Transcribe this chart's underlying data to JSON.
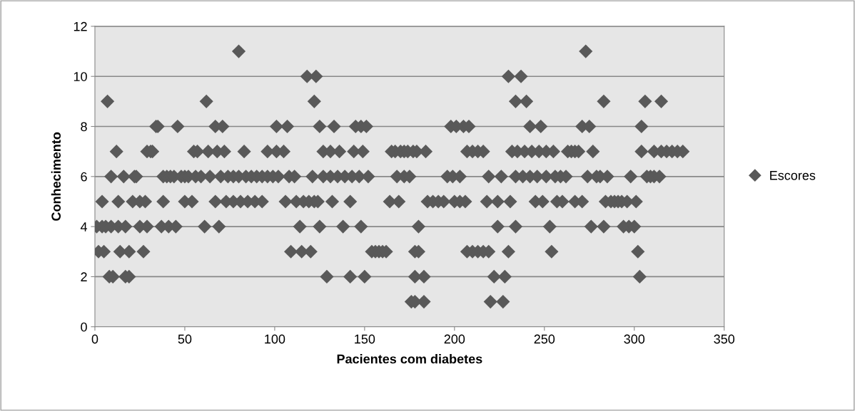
{
  "chart_data": {
    "type": "scatter",
    "xlabel": "Pacientes com diabetes",
    "ylabel": "Conhecimento",
    "xlim": [
      0,
      350
    ],
    "xticks": [
      0,
      50,
      100,
      150,
      200,
      250,
      300,
      350
    ],
    "ylim": [
      0,
      12
    ],
    "yticks": [
      0,
      2,
      4,
      6,
      8,
      10,
      12
    ],
    "grid": "y",
    "legend": "right",
    "marker": "diamond",
    "series": [
      {
        "name": "Escores",
        "color": "#595959",
        "x": [
          1,
          2,
          4,
          4,
          5,
          6,
          7,
          8,
          9,
          9,
          10,
          12,
          13,
          13,
          14,
          16,
          17,
          17,
          19,
          19,
          21,
          22,
          23,
          25,
          25,
          27,
          28,
          29,
          29,
          31,
          32,
          34,
          35,
          37,
          38,
          38,
          40,
          41,
          42,
          44,
          45,
          46,
          48,
          50,
          50,
          52,
          54,
          55,
          56,
          57,
          59,
          61,
          62,
          63,
          64,
          67,
          67,
          68,
          69,
          70,
          71,
          72,
          73,
          74,
          77,
          77,
          80,
          80,
          81,
          83,
          84,
          85,
          87,
          89,
          90,
          93,
          93,
          96,
          96,
          99,
          101,
          101,
          102,
          105,
          106,
          107,
          108,
          109,
          111,
          112,
          114,
          115,
          116,
          118,
          119,
          120,
          121,
          122,
          122,
          123,
          124,
          125,
          125,
          127,
          127,
          129,
          131,
          131,
          132,
          133,
          135,
          136,
          138,
          139,
          142,
          142,
          143,
          144,
          145,
          147,
          148,
          148,
          149,
          150,
          151,
          152,
          154,
          156,
          158,
          160,
          162,
          164,
          165,
          167,
          168,
          169,
          170,
          172,
          172,
          174,
          175,
          176,
          177,
          178,
          178,
          178,
          179,
          180,
          180,
          183,
          183,
          184,
          185,
          188,
          191,
          194,
          196,
          198,
          199,
          200,
          201,
          203,
          203,
          205,
          206,
          207,
          207,
          208,
          210,
          210,
          213,
          213,
          216,
          216,
          218,
          219,
          219,
          220,
          222,
          224,
          224,
          226,
          227,
          228,
          230,
          230,
          231,
          232,
          234,
          234,
          234,
          235,
          237,
          238,
          239,
          240,
          242,
          242,
          243,
          245,
          246,
          247,
          248,
          249,
          251,
          251,
          253,
          254,
          255,
          256,
          257,
          259,
          260,
          262,
          263,
          265,
          267,
          267,
          269,
          271,
          271,
          273,
          274,
          275,
          276,
          277,
          279,
          281,
          283,
          283,
          284,
          285,
          287,
          289,
          291,
          293,
          294,
          296,
          297,
          298,
          300,
          301,
          302,
          303,
          304,
          304,
          306,
          307,
          309,
          311,
          311,
          314,
          315,
          315,
          318,
          321,
          324,
          327
        ],
        "values": [
          4,
          3,
          5,
          4,
          3,
          4,
          9,
          2,
          4,
          6,
          2,
          7,
          5,
          4,
          3,
          6,
          4,
          2,
          3,
          2,
          5,
          6,
          6,
          5,
          4,
          3,
          5,
          4,
          7,
          7,
          7,
          8,
          8,
          4,
          6,
          5,
          6,
          4,
          6,
          6,
          4,
          8,
          6,
          5,
          6,
          6,
          5,
          7,
          6,
          7,
          6,
          4,
          9,
          7,
          6,
          8,
          5,
          7,
          4,
          6,
          8,
          7,
          5,
          6,
          5,
          6,
          11,
          6,
          5,
          7,
          6,
          5,
          6,
          5,
          6,
          5,
          6,
          7,
          6,
          6,
          7,
          8,
          6,
          7,
          5,
          8,
          6,
          3,
          6,
          5,
          4,
          3,
          5,
          10,
          5,
          3,
          6,
          9,
          5,
          10,
          5,
          8,
          4,
          7,
          6,
          2,
          7,
          6,
          5,
          8,
          6,
          7,
          4,
          6,
          5,
          2,
          6,
          7,
          8,
          6,
          8,
          4,
          7,
          2,
          8,
          6,
          3,
          3,
          3,
          3,
          3,
          5,
          7,
          7,
          6,
          5,
          7,
          6,
          7,
          7,
          6,
          1,
          7,
          3,
          2,
          1,
          7,
          4,
          3,
          2,
          1,
          7,
          5,
          5,
          5,
          5,
          6,
          8,
          6,
          5,
          8,
          6,
          5,
          8,
          5,
          7,
          3,
          8,
          7,
          3,
          7,
          3,
          7,
          3,
          5,
          6,
          3,
          1,
          2,
          5,
          4,
          6,
          1,
          2,
          3,
          10,
          5,
          7,
          9,
          6,
          4,
          7,
          10,
          6,
          7,
          9,
          8,
          6,
          7,
          5,
          6,
          7,
          8,
          5,
          6,
          7,
          4,
          3,
          7,
          6,
          5,
          6,
          5,
          6,
          7,
          7,
          5,
          7,
          7,
          8,
          5,
          11,
          6,
          8,
          4,
          7,
          6,
          6,
          9,
          4,
          5,
          6,
          5,
          5,
          5,
          5,
          4,
          5,
          4,
          6,
          4,
          5,
          3,
          2,
          8,
          7,
          9,
          6,
          6,
          7,
          6,
          6,
          9,
          7,
          7,
          7,
          7,
          7
        ]
      }
    ]
  }
}
